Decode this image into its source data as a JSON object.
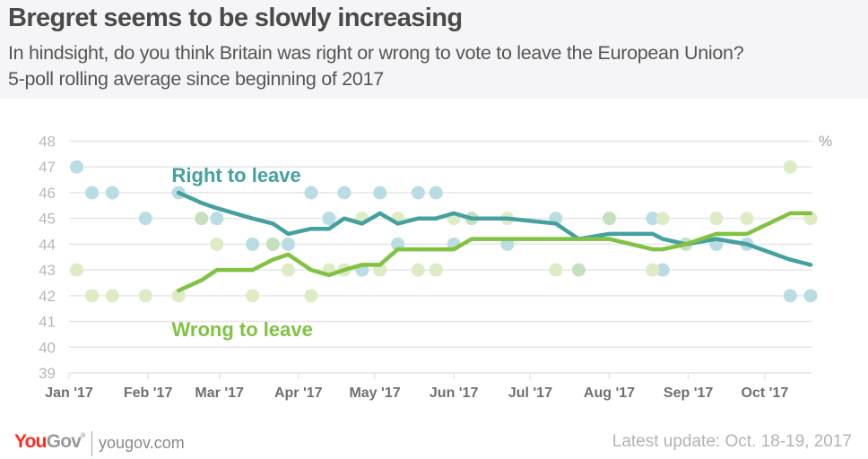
{
  "header": {
    "title": "Bregret seems to be slowly increasing",
    "subtitle_line1": "In hindsight, do you think Britain was right or wrong to vote to leave the European Union?",
    "subtitle_line2": "5-poll rolling average since beginning of 2017"
  },
  "footer": {
    "logo_you": "You",
    "logo_gov": "Gov",
    "logo_reg": "®",
    "url": "yougov.com",
    "update": "Latest update: Oct. 18-19, 2017"
  },
  "colors": {
    "right": "#45a0a0",
    "wrong": "#80c242",
    "right_dot": "#b9dde2",
    "wrong_dot": "#ddecc4",
    "overlap_dot": "#c6e0bf",
    "grid": "#e6e6e6"
  },
  "chart_data": {
    "type": "line",
    "title": "Bregret seems to be slowly increasing",
    "subtitle": "5-poll rolling average since beginning of 2017",
    "xlabel": "",
    "ylabel": "%",
    "ylim": [
      39,
      48
    ],
    "yticks": [
      39,
      40,
      41,
      42,
      43,
      44,
      45,
      46,
      47,
      48
    ],
    "grid": true,
    "x_day_range": [
      0,
      293
    ],
    "xticks": [
      {
        "day": 0,
        "label": "Jan '17"
      },
      {
        "day": 31,
        "label": "Feb '17"
      },
      {
        "day": 59,
        "label": "Mar '17"
      },
      {
        "day": 90,
        "label": "Apr '17"
      },
      {
        "day": 120,
        "label": "May '17"
      },
      {
        "day": 151,
        "label": "Jun '17"
      },
      {
        "day": 181,
        "label": "Jul '17"
      },
      {
        "day": 212,
        "label": "Aug '17"
      },
      {
        "day": 243,
        "label": "Sep '17"
      },
      {
        "day": 273,
        "label": "Oct '17"
      }
    ],
    "legend": "inline labels",
    "series": [
      {
        "name": "Right to leave",
        "key": "right",
        "polls": [
          {
            "day": 3,
            "value": 47
          },
          {
            "day": 9,
            "value": 46
          },
          {
            "day": 17,
            "value": 46
          },
          {
            "day": 30,
            "value": 45
          },
          {
            "day": 43,
            "value": 46
          },
          {
            "day": 52,
            "value": 45
          },
          {
            "day": 58,
            "value": 45
          },
          {
            "day": 72,
            "value": 44
          },
          {
            "day": 80,
            "value": 44
          },
          {
            "day": 86,
            "value": 44
          },
          {
            "day": 95,
            "value": 46
          },
          {
            "day": 102,
            "value": 45
          },
          {
            "day": 108,
            "value": 46
          },
          {
            "day": 115,
            "value": 43
          },
          {
            "day": 122,
            "value": 46
          },
          {
            "day": 129,
            "value": 44
          },
          {
            "day": 137,
            "value": 46
          },
          {
            "day": 144,
            "value": 46
          },
          {
            "day": 151,
            "value": 44
          },
          {
            "day": 158,
            "value": 45
          },
          {
            "day": 172,
            "value": 44
          },
          {
            "day": 191,
            "value": 45
          },
          {
            "day": 200,
            "value": 43
          },
          {
            "day": 212,
            "value": 45
          },
          {
            "day": 229,
            "value": 45
          },
          {
            "day": 233,
            "value": 43
          },
          {
            "day": 242,
            "value": 44
          },
          {
            "day": 254,
            "value": 44
          },
          {
            "day": 266,
            "value": 44
          },
          {
            "day": 283,
            "value": 42
          },
          {
            "day": 291,
            "value": 42
          }
        ],
        "average": [
          {
            "day": 43,
            "value": 46.0
          },
          {
            "day": 52,
            "value": 45.6
          },
          {
            "day": 58,
            "value": 45.4
          },
          {
            "day": 72,
            "value": 45.0
          },
          {
            "day": 80,
            "value": 44.8
          },
          {
            "day": 86,
            "value": 44.4
          },
          {
            "day": 95,
            "value": 44.6
          },
          {
            "day": 102,
            "value": 44.6
          },
          {
            "day": 108,
            "value": 45.0
          },
          {
            "day": 115,
            "value": 44.8
          },
          {
            "day": 122,
            "value": 45.2
          },
          {
            "day": 129,
            "value": 44.8
          },
          {
            "day": 137,
            "value": 45.0
          },
          {
            "day": 144,
            "value": 45.0
          },
          {
            "day": 151,
            "value": 45.2
          },
          {
            "day": 158,
            "value": 45.0
          },
          {
            "day": 172,
            "value": 45.0
          },
          {
            "day": 191,
            "value": 44.8
          },
          {
            "day": 200,
            "value": 44.2
          },
          {
            "day": 212,
            "value": 44.4
          },
          {
            "day": 229,
            "value": 44.4
          },
          {
            "day": 233,
            "value": 44.2
          },
          {
            "day": 242,
            "value": 44.0
          },
          {
            "day": 254,
            "value": 44.2
          },
          {
            "day": 266,
            "value": 44.0
          },
          {
            "day": 283,
            "value": 43.4
          },
          {
            "day": 291,
            "value": 43.2
          }
        ],
        "label_anchor": {
          "day": 41,
          "value": 46.7
        }
      },
      {
        "name": "Wrong to leave",
        "key": "wrong",
        "polls": [
          {
            "day": 3,
            "value": 43
          },
          {
            "day": 9,
            "value": 42
          },
          {
            "day": 17,
            "value": 42
          },
          {
            "day": 30,
            "value": 42
          },
          {
            "day": 43,
            "value": 42
          },
          {
            "day": 52,
            "value": 45
          },
          {
            "day": 58,
            "value": 44
          },
          {
            "day": 72,
            "value": 42
          },
          {
            "day": 80,
            "value": 44
          },
          {
            "day": 86,
            "value": 43
          },
          {
            "day": 95,
            "value": 42
          },
          {
            "day": 102,
            "value": 43
          },
          {
            "day": 108,
            "value": 43
          },
          {
            "day": 115,
            "value": 45
          },
          {
            "day": 122,
            "value": 43
          },
          {
            "day": 129,
            "value": 45
          },
          {
            "day": 137,
            "value": 43
          },
          {
            "day": 144,
            "value": 43
          },
          {
            "day": 151,
            "value": 45
          },
          {
            "day": 158,
            "value": 45
          },
          {
            "day": 172,
            "value": 45
          },
          {
            "day": 191,
            "value": 43
          },
          {
            "day": 200,
            "value": 43
          },
          {
            "day": 212,
            "value": 45
          },
          {
            "day": 229,
            "value": 43
          },
          {
            "day": 233,
            "value": 45
          },
          {
            "day": 242,
            "value": 44
          },
          {
            "day": 254,
            "value": 45
          },
          {
            "day": 266,
            "value": 45
          },
          {
            "day": 283,
            "value": 47
          },
          {
            "day": 291,
            "value": 45
          }
        ],
        "average": [
          {
            "day": 43,
            "value": 42.2
          },
          {
            "day": 52,
            "value": 42.6
          },
          {
            "day": 58,
            "value": 43.0
          },
          {
            "day": 72,
            "value": 43.0
          },
          {
            "day": 80,
            "value": 43.4
          },
          {
            "day": 86,
            "value": 43.6
          },
          {
            "day": 95,
            "value": 43.0
          },
          {
            "day": 102,
            "value": 42.8
          },
          {
            "day": 108,
            "value": 43.0
          },
          {
            "day": 115,
            "value": 43.2
          },
          {
            "day": 122,
            "value": 43.2
          },
          {
            "day": 129,
            "value": 43.8
          },
          {
            "day": 137,
            "value": 43.8
          },
          {
            "day": 144,
            "value": 43.8
          },
          {
            "day": 151,
            "value": 43.8
          },
          {
            "day": 158,
            "value": 44.2
          },
          {
            "day": 172,
            "value": 44.2
          },
          {
            "day": 191,
            "value": 44.2
          },
          {
            "day": 200,
            "value": 44.2
          },
          {
            "day": 212,
            "value": 44.2
          },
          {
            "day": 229,
            "value": 43.8
          },
          {
            "day": 233,
            "value": 43.8
          },
          {
            "day": 242,
            "value": 44.0
          },
          {
            "day": 254,
            "value": 44.4
          },
          {
            "day": 266,
            "value": 44.4
          },
          {
            "day": 283,
            "value": 45.2
          },
          {
            "day": 291,
            "value": 45.2
          }
        ],
        "label_anchor": {
          "day": 41,
          "value": 40.7
        }
      }
    ]
  }
}
